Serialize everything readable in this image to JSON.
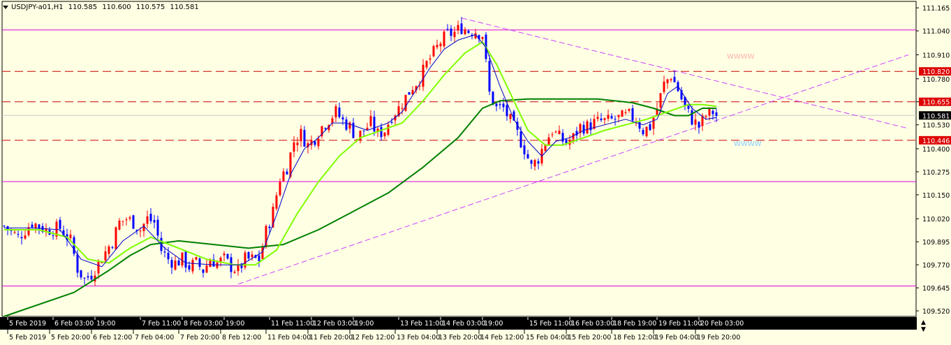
{
  "header": {
    "symbol": "USDJPY-a01,H1",
    "open": "110.585",
    "high": "110.600",
    "low": "110.575",
    "close": "110.581"
  },
  "colors": {
    "background": "#ffffe4",
    "up_candle": "#ff0000",
    "down_candle": "#0000ff",
    "ma_fast": "#0000cc",
    "ma_mid": "#80ff00",
    "ma_slow": "#008000",
    "hline": "#dd00dd",
    "red_line": "#cc0000",
    "trend_line": "#cc44ff",
    "axis_bar": "#000000"
  },
  "chart_data": {
    "type": "candlestick",
    "symbol": "USDJPY",
    "timeframe": "H1",
    "ylim": [
      109.49,
      111.2
    ],
    "y_ticks": [
      "111.165",
      "111.040",
      "110.910",
      "110.780",
      "110.655",
      "110.530",
      "110.400",
      "110.275",
      "110.150",
      "110.020",
      "109.895",
      "109.770",
      "109.645",
      "109.520"
    ],
    "current_price": "110.581",
    "red_levels": [
      "110.820",
      "110.655",
      "110.446"
    ],
    "magenta_levels": [
      111.045,
      110.222,
      109.655
    ],
    "labels": [
      {
        "text": "WWWW",
        "price": 110.89,
        "index": 207,
        "color": "#ffb0b0"
      },
      {
        "text": "WWWW",
        "price": 110.415,
        "index": 209,
        "color": "#88ccff"
      }
    ],
    "x_labels_top": [
      {
        "text": "5 Feb 2019",
        "index": 1
      },
      {
        "text": "6 Feb 03:00",
        "index": 14
      },
      {
        "text": "19:00",
        "index": 26
      },
      {
        "text": "7 Feb 11:00",
        "index": 39
      },
      {
        "text": "8 Feb 03:00",
        "index": 51
      },
      {
        "text": "19:00",
        "index": 63
      },
      {
        "text": "11 Feb 11:00",
        "index": 76
      },
      {
        "text": "12 Feb 03:00",
        "index": 88
      },
      {
        "text": "19:00",
        "index": 100
      },
      {
        "text": "13 Feb 11:00",
        "index": 113
      },
      {
        "text": "14 Feb 03:00",
        "index": 125
      },
      {
        "text": "19:00",
        "index": 137
      },
      {
        "text": "15 Feb 11:00",
        "index": 150
      },
      {
        "text": "16 Feb 03:00",
        "index": 162
      },
      {
        "text": "18 Feb 19:00",
        "index": 174
      },
      {
        "text": "19 Feb 11:00",
        "index": 187
      },
      {
        "text": "20 Feb 03:00",
        "index": 199
      }
    ],
    "x_labels_bottom": [
      {
        "text": "5 Feb 2019",
        "index": 1
      },
      {
        "text": "5 Feb 20:00",
        "index": 13
      },
      {
        "text": "6 Feb 12:00",
        "index": 25
      },
      {
        "text": "7 Feb 04:00",
        "index": 37
      },
      {
        "text": "7 Feb 20:00",
        "index": 50
      },
      {
        "text": "8 Feb 12:00",
        "index": 62
      },
      {
        "text": "11 Feb 04:00",
        "index": 75
      },
      {
        "text": "11 Feb 20:00",
        "index": 87
      },
      {
        "text": "12 Feb 12:00",
        "index": 99
      },
      {
        "text": "13 Feb 04:00",
        "index": 112
      },
      {
        "text": "13 Feb 20:00",
        "index": 124
      },
      {
        "text": "14 Feb 12:00",
        "index": 136
      },
      {
        "text": "15 Feb 04:00",
        "index": 149
      },
      {
        "text": "15 Feb 20:00",
        "index": 161
      },
      {
        "text": "18 Feb 12:00",
        "index": 174
      },
      {
        "text": "19 Feb 04:00",
        "index": 186
      },
      {
        "text": "19 Feb 20:00",
        "index": 198
      }
    ],
    "trend_lines": [
      {
        "from": {
          "index": 67,
          "price": 109.665
        },
        "to": {
          "index": 259,
          "price": 110.91
        }
      },
      {
        "from": {
          "index": 131,
          "price": 111.11
        },
        "to": {
          "index": 259,
          "price": 110.51
        }
      },
      {
        "from": {
          "index": 131,
          "price": 111.11
        },
        "to": {
          "index": 131,
          "price": 111.11
        }
      }
    ],
    "close_path": [
      [
        0,
        109.98
      ],
      [
        4,
        109.92
      ],
      [
        8,
        110.0
      ],
      [
        12,
        109.96
      ],
      [
        16,
        109.97
      ],
      [
        19,
        109.9
      ],
      [
        21,
        109.75
      ],
      [
        23,
        109.69
      ],
      [
        25,
        109.72
      ],
      [
        27,
        109.78
      ],
      [
        29,
        109.84
      ],
      [
        31,
        109.9
      ],
      [
        33,
        110.0
      ],
      [
        35,
        110.02
      ],
      [
        37,
        110.0
      ],
      [
        39,
        109.96
      ],
      [
        41,
        110.02
      ],
      [
        43,
        110.0
      ],
      [
        45,
        109.85
      ],
      [
        47,
        109.8
      ],
      [
        49,
        109.78
      ],
      [
        51,
        109.8
      ],
      [
        53,
        109.76
      ],
      [
        55,
        109.78
      ],
      [
        57,
        109.74
      ],
      [
        59,
        109.8
      ],
      [
        61,
        109.78
      ],
      [
        63,
        109.8
      ],
      [
        65,
        109.76
      ],
      [
        67,
        109.74
      ],
      [
        69,
        109.8
      ],
      [
        71,
        109.8
      ],
      [
        73,
        109.8
      ],
      [
        75,
        109.95
      ],
      [
        77,
        110.06
      ],
      [
        79,
        110.24
      ],
      [
        81,
        110.3
      ],
      [
        83,
        110.44
      ],
      [
        85,
        110.48
      ],
      [
        87,
        110.42
      ],
      [
        89,
        110.46
      ],
      [
        91,
        110.52
      ],
      [
        93,
        110.56
      ],
      [
        95,
        110.6
      ],
      [
        97,
        110.55
      ],
      [
        99,
        110.52
      ],
      [
        101,
        110.46
      ],
      [
        103,
        110.5
      ],
      [
        105,
        110.54
      ],
      [
        107,
        110.48
      ],
      [
        109,
        110.5
      ],
      [
        111,
        110.58
      ],
      [
        113,
        110.62
      ],
      [
        115,
        110.68
      ],
      [
        117,
        110.74
      ],
      [
        119,
        110.78
      ],
      [
        121,
        110.86
      ],
      [
        123,
        110.92
      ],
      [
        125,
        110.98
      ],
      [
        127,
        111.02
      ],
      [
        129,
        111.03
      ],
      [
        131,
        111.06
      ],
      [
        133,
        111.04
      ],
      [
        135,
        111.04
      ],
      [
        137,
        111.02
      ],
      [
        139,
        110.7
      ],
      [
        141,
        110.62
      ],
      [
        143,
        110.62
      ],
      [
        145,
        110.55
      ],
      [
        147,
        110.48
      ],
      [
        149,
        110.4
      ],
      [
        151,
        110.3
      ],
      [
        153,
        110.35
      ],
      [
        155,
        110.44
      ],
      [
        157,
        110.5
      ],
      [
        159,
        110.46
      ],
      [
        161,
        110.43
      ],
      [
        163,
        110.46
      ],
      [
        165,
        110.52
      ],
      [
        167,
        110.52
      ],
      [
        169,
        110.54
      ],
      [
        171,
        110.55
      ],
      [
        173,
        110.55
      ],
      [
        175,
        110.56
      ],
      [
        177,
        110.57
      ],
      [
        179,
        110.58
      ],
      [
        181,
        110.56
      ],
      [
        183,
        110.5
      ],
      [
        185,
        110.52
      ],
      [
        187,
        110.62
      ],
      [
        189,
        110.75
      ],
      [
        191,
        110.8
      ],
      [
        193,
        110.72
      ],
      [
        195,
        110.62
      ],
      [
        197,
        110.56
      ],
      [
        199,
        110.52
      ],
      [
        201,
        110.58
      ],
      [
        203,
        110.6
      ],
      [
        204,
        110.58
      ]
    ],
    "ma_fast_path": [
      [
        0,
        109.97
      ],
      [
        8,
        109.97
      ],
      [
        16,
        109.96
      ],
      [
        22,
        109.8
      ],
      [
        28,
        109.76
      ],
      [
        34,
        109.9
      ],
      [
        40,
        109.98
      ],
      [
        46,
        109.86
      ],
      [
        52,
        109.78
      ],
      [
        60,
        109.77
      ],
      [
        68,
        109.77
      ],
      [
        74,
        109.84
      ],
      [
        78,
        110.04
      ],
      [
        82,
        110.26
      ],
      [
        86,
        110.4
      ],
      [
        90,
        110.46
      ],
      [
        94,
        110.54
      ],
      [
        98,
        110.54
      ],
      [
        104,
        110.5
      ],
      [
        110,
        110.54
      ],
      [
        114,
        110.6
      ],
      [
        118,
        110.72
      ],
      [
        122,
        110.84
      ],
      [
        126,
        110.94
      ],
      [
        130,
        110.99
      ],
      [
        135,
        111.02
      ],
      [
        138,
        110.95
      ],
      [
        142,
        110.74
      ],
      [
        146,
        110.56
      ],
      [
        150,
        110.44
      ],
      [
        154,
        110.36
      ],
      [
        158,
        110.44
      ],
      [
        162,
        110.46
      ],
      [
        166,
        110.5
      ],
      [
        172,
        110.53
      ],
      [
        178,
        110.56
      ],
      [
        183,
        110.53
      ],
      [
        187,
        110.56
      ],
      [
        190,
        110.7
      ],
      [
        193,
        110.74
      ],
      [
        197,
        110.62
      ],
      [
        201,
        110.56
      ],
      [
        204,
        110.57
      ]
    ],
    "ma_mid_path": [
      [
        0,
        109.96
      ],
      [
        10,
        109.96
      ],
      [
        18,
        109.92
      ],
      [
        24,
        109.8
      ],
      [
        30,
        109.78
      ],
      [
        36,
        109.86
      ],
      [
        42,
        109.92
      ],
      [
        50,
        109.86
      ],
      [
        58,
        109.8
      ],
      [
        66,
        109.77
      ],
      [
        72,
        109.77
      ],
      [
        78,
        109.85
      ],
      [
        84,
        110.05
      ],
      [
        90,
        110.22
      ],
      [
        96,
        110.36
      ],
      [
        102,
        110.46
      ],
      [
        108,
        110.5
      ],
      [
        114,
        110.54
      ],
      [
        120,
        110.66
      ],
      [
        126,
        110.8
      ],
      [
        132,
        110.92
      ],
      [
        137,
        110.98
      ],
      [
        141,
        110.86
      ],
      [
        145,
        110.7
      ],
      [
        150,
        110.5
      ],
      [
        155,
        110.42
      ],
      [
        160,
        110.42
      ],
      [
        166,
        110.46
      ],
      [
        172,
        110.5
      ],
      [
        178,
        110.53
      ],
      [
        184,
        110.56
      ],
      [
        190,
        110.6
      ],
      [
        196,
        110.64
      ],
      [
        200,
        110.64
      ],
      [
        204,
        110.63
      ]
    ],
    "ma_slow_path": [
      [
        0,
        109.49
      ],
      [
        20,
        109.62
      ],
      [
        30,
        109.74
      ],
      [
        36,
        109.82
      ],
      [
        42,
        109.88
      ],
      [
        50,
        109.9
      ],
      [
        60,
        109.88
      ],
      [
        70,
        109.86
      ],
      [
        80,
        109.88
      ],
      [
        90,
        109.96
      ],
      [
        100,
        110.06
      ],
      [
        110,
        110.16
      ],
      [
        120,
        110.3
      ],
      [
        130,
        110.46
      ],
      [
        137,
        110.62
      ],
      [
        142,
        110.66
      ],
      [
        150,
        110.67
      ],
      [
        160,
        110.67
      ],
      [
        170,
        110.67
      ],
      [
        180,
        110.65
      ],
      [
        186,
        110.62
      ],
      [
        192,
        110.58
      ],
      [
        196,
        110.58
      ],
      [
        200,
        110.62
      ],
      [
        204,
        110.62
      ]
    ]
  }
}
